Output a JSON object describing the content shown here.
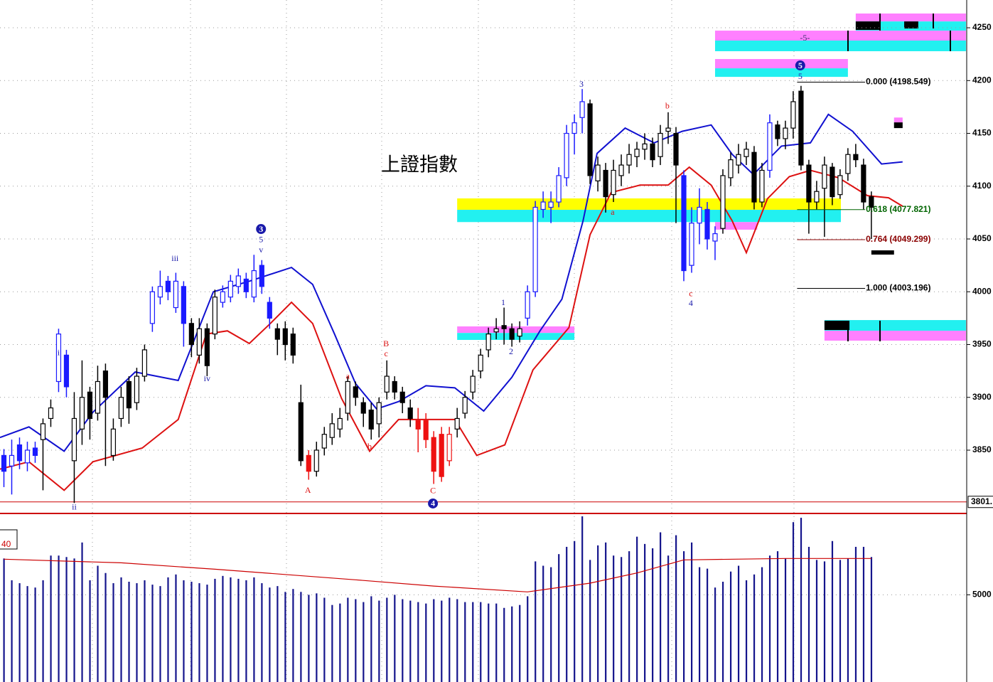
{
  "chart_data": [
    {
      "type": "candlestick",
      "title": "上證指數",
      "xlim": [
        -0.5,
        123.2
      ],
      "ylim": [
        3791.4,
        4276.3
      ],
      "yticks": [
        3850,
        3900,
        3950,
        4000,
        4050,
        4100,
        4150,
        4200,
        4250
      ],
      "grid": true,
      "color": "#000000",
      "candle_colors": [
        {
          "from": 0,
          "to": 4,
          "color": "#1a1aff"
        },
        {
          "from": 7,
          "to": 8,
          "color": "#1a1aff"
        },
        {
          "from": 19,
          "to": 23,
          "color": "#1a1aff"
        },
        {
          "from": 28,
          "to": 34,
          "color": "#1a1aff"
        },
        {
          "from": 67,
          "to": 74,
          "color": "#1a1aff"
        },
        {
          "from": 87,
          "to": 91,
          "color": "#1a1aff"
        },
        {
          "from": 98,
          "to": 98,
          "color": "#1a1aff"
        },
        {
          "from": 39,
          "to": 39,
          "color": "#ee1111"
        },
        {
          "from": 53,
          "to": 57,
          "color": "#ee1111"
        }
      ],
      "open": [
        3845,
        3835,
        3855,
        3838,
        3852,
        3860,
        3880,
        3915,
        3940,
        3840,
        3870,
        3905,
        3885,
        3925,
        3845,
        3880,
        3915,
        3895,
        3920,
        3970,
        3995,
        4010,
        3985,
        4005,
        3970,
        3940,
        3965,
        3960,
        3990,
        3995,
        4005,
        4012,
        3995,
        4025,
        3990,
        3965,
        3965,
        3960,
        3895,
        3845,
        3830,
        3852,
        3862,
        3870,
        3885,
        3910,
        3895,
        3888,
        3875,
        3905,
        3915,
        3905,
        3890,
        3878,
        3878,
        3862,
        3865,
        3840,
        3870,
        3885,
        3905,
        3925,
        3945,
        3962,
        3968,
        3965,
        3958,
        3975,
        4000,
        4078,
        4080,
        4085,
        4108,
        4150,
        4165,
        4178,
        4105,
        4115,
        4092,
        4110,
        4120,
        4128,
        4135,
        4140,
        4128,
        4152,
        4150,
        4110,
        4025,
        4065,
        4078,
        4048,
        4060,
        4108,
        4120,
        4128,
        4132,
        4085,
        4115,
        4158,
        4145,
        4155,
        4190,
        4120,
        4085,
        4098,
        4118,
        4092,
        4112,
        4130,
        4120,
        4090
      ],
      "high": [
        3851,
        3860,
        3862,
        3858,
        3858,
        3880,
        3898,
        3965,
        3945,
        3905,
        3935,
        3910,
        3930,
        3932,
        3880,
        3910,
        3920,
        3928,
        3950,
        4005,
        4020,
        4015,
        4018,
        4010,
        3975,
        3975,
        3970,
        4002,
        4006,
        4016,
        4022,
        4018,
        4035,
        4030,
        3995,
        3970,
        3972,
        3966,
        3912,
        3850,
        3858,
        3872,
        3885,
        3890,
        3920,
        3915,
        3900,
        3895,
        3900,
        3935,
        3920,
        3910,
        3898,
        3890,
        3885,
        3868,
        3872,
        3872,
        3890,
        3906,
        3926,
        3946,
        3966,
        3975,
        3985,
        3970,
        3972,
        4006,
        4086,
        4095,
        4095,
        4118,
        4158,
        4168,
        4192,
        4182,
        4128,
        4122,
        4125,
        4130,
        4140,
        4142,
        4150,
        4146,
        4158,
        4170,
        4156,
        4115,
        4080,
        4098,
        4085,
        4062,
        4116,
        4132,
        4140,
        4142,
        4138,
        4122,
        4168,
        4162,
        4162,
        4190,
        4195,
        4125,
        4105,
        4128,
        4122,
        4116,
        4136,
        4140,
        4126,
        4095
      ],
      "low": [
        3815,
        3808,
        3832,
        3830,
        3838,
        3812,
        3872,
        3905,
        3900,
        3800,
        3855,
        3860,
        3878,
        3835,
        3840,
        3872,
        3875,
        3888,
        3915,
        3962,
        3988,
        3992,
        3980,
        3948,
        3938,
        3932,
        3920,
        3955,
        3985,
        3990,
        3998,
        3994,
        3990,
        3998,
        3965,
        3940,
        3935,
        3932,
        3835,
        3822,
        3825,
        3845,
        3855,
        3862,
        3878,
        3892,
        3872,
        3860,
        3862,
        3898,
        3898,
        3885,
        3872,
        3848,
        3852,
        3818,
        3820,
        3835,
        3862,
        3880,
        3898,
        3918,
        3938,
        3955,
        3950,
        3948,
        3952,
        3968,
        3995,
        4070,
        4065,
        4080,
        4100,
        4130,
        4150,
        4102,
        4095,
        4075,
        4085,
        4100,
        4112,
        4118,
        4125,
        4118,
        4120,
        4140,
        4065,
        4010,
        4018,
        4045,
        4040,
        4030,
        4055,
        4100,
        4112,
        4120,
        4078,
        4080,
        4108,
        4138,
        4135,
        4145,
        4115,
        4055,
        4078,
        4052,
        4082,
        4088,
        4105,
        4118,
        4078,
        4050
      ],
      "close": [
        3830,
        3845,
        3840,
        3850,
        3845,
        3875,
        3890,
        3960,
        3910,
        3880,
        3900,
        3880,
        3915,
        3900,
        3870,
        3900,
        3890,
        3920,
        3945,
        4000,
        4005,
        4000,
        4010,
        3970,
        3950,
        3965,
        3930,
        3995,
        4000,
        4010,
        4015,
        4000,
        4020,
        4005,
        3975,
        3955,
        3950,
        3940,
        3840,
        3830,
        3850,
        3865,
        3875,
        3880,
        3915,
        3900,
        3885,
        3870,
        3895,
        3920,
        3905,
        3895,
        3880,
        3870,
        3860,
        3830,
        3825,
        3865,
        3880,
        3900,
        3920,
        3940,
        3960,
        3965,
        3965,
        3955,
        3965,
        4000,
        4080,
        4085,
        4085,
        4110,
        4150,
        4160,
        4180,
        4110,
        4120,
        4090,
        4115,
        4120,
        4130,
        4135,
        4140,
        4125,
        4150,
        4155,
        4120,
        4020,
        4065,
        4080,
        4050,
        4055,
        4110,
        4125,
        4130,
        4135,
        4085,
        4115,
        4160,
        4145,
        4155,
        4180,
        4120,
        4085,
        4095,
        4120,
        4090,
        4110,
        4130,
        4125,
        4085,
        4080
      ],
      "lines": [
        {
          "color": "#1010d0",
          "x": [
            -0.5,
            3.2,
            7.7,
            11.4,
            16.8,
            22.3,
            26.8,
            31.4,
            36.8,
            39.5,
            42.3,
            45,
            47.7,
            50.5,
            54,
            57.7,
            61.4,
            65,
            68.6,
            71.4,
            74.1,
            75.9,
            79.5,
            83.2,
            86.8,
            90.5,
            93.2,
            95.9,
            99.5,
            103.2,
            105.5,
            108.6,
            112.3,
            115
          ],
          "values": [
            3862,
            3872,
            3849,
            3886,
            3924,
            3916,
            4000,
            4010,
            4023,
            4007,
            3960,
            3913,
            3889,
            3896,
            3911,
            3909,
            3887,
            3919,
            3963,
            3993,
            4067,
            4131,
            4155,
            4141,
            4152,
            4158,
            4130,
            4111,
            4138,
            4141,
            4168,
            4152,
            4121,
            4123
          ]
        },
        {
          "color": "#dd1111",
          "x": [
            -0.5,
            3.2,
            7.7,
            11.4,
            17.7,
            22.3,
            25.9,
            28.6,
            31.4,
            34.1,
            36.8,
            39.5,
            43.2,
            46.8,
            50.5,
            54.1,
            57.7,
            60.5,
            64.1,
            67.7,
            72.3,
            75,
            77.7,
            81.4,
            85,
            87.7,
            90.5,
            93.2,
            95,
            97.7,
            100.5,
            103.2,
            106.8,
            110.5,
            113.2,
            115
          ],
          "values": [
            3832,
            3839,
            3812,
            3839,
            3852,
            3879,
            3960,
            3963,
            3951,
            3970,
            3990,
            3970,
            3899,
            3849,
            3879,
            3879,
            3879,
            3845,
            3855,
            3926,
            3966,
            4054,
            4094,
            4101,
            4101,
            4118,
            4101,
            4067,
            4037,
            4088,
            4109,
            4115,
            4108,
            4091,
            4089,
            4081
          ]
        }
      ],
      "zones": [
        {
          "x": [
            58,
            107.1
          ],
          "y": [
            4077.6,
            4088.4
          ],
          "color": "#ffff00"
        },
        {
          "x": [
            58,
            107.1
          ],
          "y": [
            4066,
            4077.6
          ],
          "color": "#22f0f0"
        },
        {
          "x": [
            91,
            96.4
          ],
          "y": [
            4058.8,
            4066
          ],
          "color": "#ff80ff"
        },
        {
          "x": [
            58,
            73
          ],
          "y": [
            3961,
            3967.2
          ],
          "color": "#ff80ff"
        },
        {
          "x": [
            58,
            73
          ],
          "y": [
            3954.4,
            3961
          ],
          "color": "#22f0f0"
        },
        {
          "x": [
            91,
            108
          ],
          "y": [
            4211.6,
            4220.4
          ],
          "color": "#ff80ff"
        },
        {
          "x": [
            91,
            108
          ],
          "y": [
            4203.5,
            4211.6
          ],
          "color": "#22f0f0"
        },
        {
          "x": [
            91,
            123.1
          ],
          "y": [
            4237.9,
            4247.3
          ],
          "color": "#ff80ff"
        },
        {
          "x": [
            91,
            123.1
          ],
          "y": [
            4227.8,
            4237.9
          ],
          "color": "#22f0f0"
        },
        {
          "x": [
            109,
            123.1
          ],
          "y": [
            4256,
            4263.5
          ],
          "color": "#ff80ff"
        },
        {
          "x": [
            109,
            123.1
          ],
          "y": [
            4247.3,
            4256
          ],
          "color": "#22f0f0"
        },
        {
          "x": [
            105,
            123.1
          ],
          "y": [
            3963.1,
            3973.2
          ],
          "color": "#22f0f0"
        },
        {
          "x": [
            105,
            123.1
          ],
          "y": [
            3953.7,
            3963.1
          ],
          "color": "#ff80ff"
        },
        {
          "x": [
            113.9,
            115
          ],
          "y": [
            4160.4,
            4165
          ],
          "color": "#ff80ff"
        },
        {
          "x": [
            113.9,
            115
          ],
          "y": [
            4155,
            4160.4
          ],
          "color": "#000000"
        },
        {
          "x": [
            109,
            112.1
          ],
          "y": [
            4248,
            4256
          ],
          "color": "#000000"
        },
        {
          "x": [
            115.2,
            117
          ],
          "y": [
            4249.3,
            4256
          ],
          "color": "#000000"
        },
        {
          "x": [
            105,
            108.2
          ],
          "y": [
            3963.8,
            3972.6
          ],
          "color": "#000000"
        },
        {
          "x": [
            111,
            113.9
          ],
          "y": [
            4035.2,
            4039.2
          ],
          "color": "#000000"
        }
      ],
      "levels_x": [
        101.5,
        110.2
      ],
      "levels": [
        {
          "label": "0.000 (4198.549)",
          "value": 4198.549,
          "color": "#000000"
        },
        {
          "label": "0.618 (4077.821)",
          "value": 4077.821,
          "color": "#006400"
        },
        {
          "label": "0.764 (4049.299)",
          "value": 4049.299,
          "color": "#8b0000"
        },
        {
          "label": "1.000 (4003.196)",
          "value": 4003.196,
          "color": "#000000"
        }
      ],
      "last": {
        "value": 3801,
        "label": "3801."
      },
      "annotations": [
        {
          "text": "i",
          "x": 7,
          "y": 3941.6,
          "color": "#1a1aaa"
        },
        {
          "text": "ii",
          "x": 9,
          "y": 3795.5,
          "color": "#1a1aaa"
        },
        {
          "text": "iii",
          "x": 21.9,
          "y": 4031,
          "color": "#1a1aaa"
        },
        {
          "text": "iv",
          "x": 26,
          "y": 3917.3,
          "color": "#1a1aaa"
        },
        {
          "text": "v",
          "x": 32.9,
          "y": 4039.2,
          "color": "#1a1aaa"
        },
        {
          "text": "5",
          "x": 32.9,
          "y": 4048.7,
          "color": "#1a1aaa"
        },
        {
          "text": "3",
          "x": 32.9,
          "y": 4059.4,
          "color": "#1a1aaa",
          "circled": true
        },
        {
          "text": "A",
          "x": 38.9,
          "y": 3811.6,
          "color": "#dd1111"
        },
        {
          "text": "a",
          "x": 44,
          "y": 3919.4,
          "color": "#dd1111"
        },
        {
          "text": "b",
          "x": 46.8,
          "y": 3852.7,
          "color": "#dd1111"
        },
        {
          "text": "B",
          "x": 48.9,
          "y": 3950.3,
          "color": "#dd1111"
        },
        {
          "text": "c",
          "x": 48.9,
          "y": 3940.9,
          "color": "#dd1111"
        },
        {
          "text": "C",
          "x": 54.9,
          "y": 3811,
          "color": "#dd1111"
        },
        {
          "text": "4",
          "x": 54.9,
          "y": 3799.5,
          "color": "#1a1aaa",
          "circled": true
        },
        {
          "text": "1",
          "x": 63.9,
          "y": 3989.4,
          "color": "#1a1aaa"
        },
        {
          "text": "2",
          "x": 64.9,
          "y": 3942.9,
          "color": "#1a1aaa"
        },
        {
          "text": "3",
          "x": 73.9,
          "y": 4196.1,
          "color": "#1a1aaa"
        },
        {
          "text": "a",
          "x": 77.9,
          "y": 4074.9,
          "color": "#dd1111"
        },
        {
          "text": "b",
          "x": 84.9,
          "y": 4175.3,
          "color": "#dd1111"
        },
        {
          "text": "c",
          "x": 87.9,
          "y": 3997.5,
          "color": "#dd1111"
        },
        {
          "text": "4",
          "x": 87.9,
          "y": 3988.7,
          "color": "#1a1aaa"
        },
        {
          "text": "5",
          "x": 101.9,
          "y": 4214.3,
          "color": "#1a1aaa",
          "circled": true
        },
        {
          "text": "5",
          "x": 101.9,
          "y": 4203.5,
          "color": "#1a1aaa"
        },
        {
          "text": "-5-",
          "x": 102.5,
          "y": 4239.9,
          "color": "#333366"
        }
      ]
    },
    {
      "type": "bar",
      "indicator_label": "40",
      "xlim": [
        -0.5,
        123.2
      ],
      "ylim": [
        -1000,
        10500
      ],
      "yticks": [
        5000
      ],
      "grid": true,
      "color": "#14148c",
      "values": [
        7500,
        6000,
        5800,
        5600,
        5500,
        6000,
        7700,
        7700,
        7600,
        7500,
        8600,
        6000,
        7000,
        6500,
        5800,
        6200,
        5900,
        5800,
        6000,
        5700,
        5600,
        6200,
        6400,
        6000,
        5900,
        5800,
        5700,
        6100,
        6300,
        6200,
        6100,
        6000,
        6200,
        5800,
        5500,
        5600,
        5200,
        5400,
        5200,
        5000,
        5100,
        4800,
        4300,
        4400,
        4800,
        4700,
        4500,
        4900,
        4600,
        4800,
        5000,
        4700,
        4600,
        4500,
        4400,
        4700,
        4600,
        4800,
        4700,
        4500,
        4500,
        4500,
        4400,
        4400,
        4100,
        4200,
        4300,
        4900,
        7300,
        7000,
        6900,
        7800,
        8300,
        8700,
        10400,
        7400,
        8400,
        8600,
        7700,
        7600,
        8000,
        9000,
        8500,
        8200,
        9300,
        7700,
        9100,
        8000,
        8600,
        6900,
        6800,
        5500,
        5900,
        6600,
        7000,
        6000,
        6400,
        6900,
        7700,
        8000,
        7500,
        10000,
        10300,
        8300,
        7400,
        7300,
        8700,
        7400,
        7500,
        8300,
        8300,
        7600
      ],
      "average": {
        "color": "#cc0000",
        "x": [
          0,
          15,
          27,
          45,
          55,
          67,
          75,
          81,
          87,
          100,
          111
        ],
        "values": [
          7450,
          7200,
          6760,
          6030,
          5600,
          5200,
          5800,
          6500,
          7400,
          7500,
          7500
        ]
      }
    }
  ]
}
